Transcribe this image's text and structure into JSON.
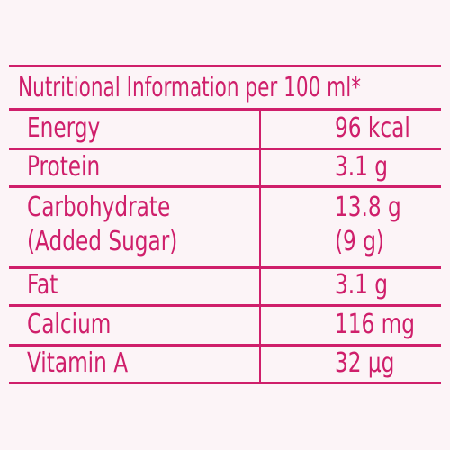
{
  "table": {
    "title": "Nutritional Information per 100 ml*",
    "rows": [
      {
        "label": "Energy",
        "value": "96 kcal"
      },
      {
        "label": "Protein",
        "value": "3.1 g"
      },
      {
        "label": "Carbohydrate",
        "label2": "(Added Sugar)",
        "value": "13.8 g",
        "value2": "(9 g)"
      },
      {
        "label": "Fat",
        "value": "3.1 g"
      },
      {
        "label": "Calcium",
        "value": "116 mg"
      },
      {
        "label": "Vitamin A",
        "value": "32 µg"
      }
    ]
  },
  "colors": {
    "accent": "#cf1f6b",
    "background": "#fcf4f7"
  }
}
